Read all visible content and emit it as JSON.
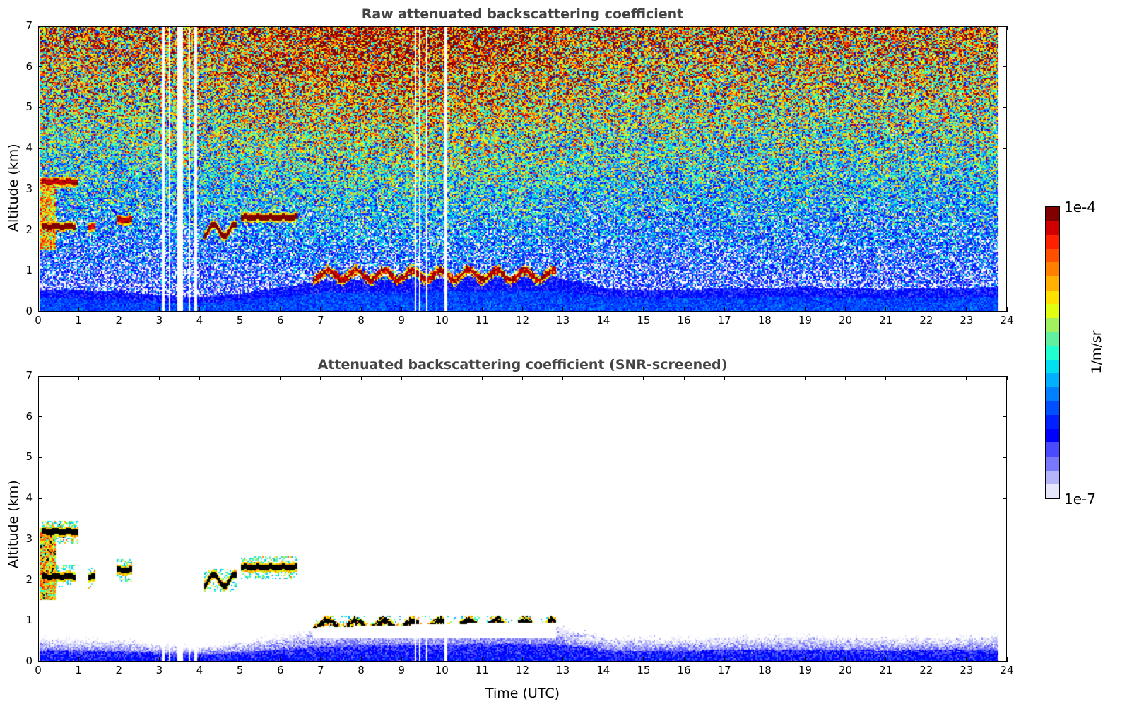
{
  "chart_data": [
    {
      "type": "heatmap",
      "title": "Raw attenuated backscattering coefficient",
      "xlabel": "",
      "ylabel": "Altitude (km)",
      "xlim": [
        0,
        24
      ],
      "ylim": [
        0,
        7
      ],
      "xticks": [
        "0",
        "1",
        "2",
        "3",
        "4",
        "5",
        "6",
        "7",
        "8",
        "9",
        "10",
        "11",
        "12",
        "13",
        "14",
        "15",
        "16",
        "17",
        "18",
        "19",
        "20",
        "21",
        "22",
        "23",
        "24"
      ],
      "yticks": [
        "0",
        "1",
        "2",
        "3",
        "4",
        "5",
        "6",
        "7"
      ],
      "screened": false
    },
    {
      "type": "heatmap",
      "title": "Attenuated backscattering coefficient (SNR-screened)",
      "xlabel": "Time (UTC)",
      "ylabel": "Altitude (km)",
      "xlim": [
        0,
        24
      ],
      "ylim": [
        0,
        7
      ],
      "xticks": [
        "0",
        "1",
        "2",
        "3",
        "4",
        "5",
        "6",
        "7",
        "8",
        "9",
        "10",
        "11",
        "12",
        "13",
        "14",
        "15",
        "16",
        "17",
        "18",
        "19",
        "20",
        "21",
        "22",
        "23",
        "24"
      ],
      "yticks": [
        "0",
        "1",
        "2",
        "3",
        "4",
        "5",
        "6",
        "7"
      ],
      "screened": true
    }
  ],
  "shared": {
    "data_end_time": 23.8,
    "data_gaps_hours": [
      [
        3.05,
        3.1
      ],
      [
        3.2,
        3.25
      ],
      [
        3.42,
        3.55
      ],
      [
        3.7,
        3.75
      ],
      [
        3.85,
        3.92
      ],
      [
        9.3,
        9.33
      ],
      [
        9.42,
        9.45
      ],
      [
        9.6,
        9.63
      ],
      [
        10.05,
        10.1
      ]
    ],
    "boundary_layer_top_km": [
      [
        0,
        0.55
      ],
      [
        2,
        0.5
      ],
      [
        3,
        0.4
      ],
      [
        4,
        0.35
      ],
      [
        5,
        0.45
      ],
      [
        6,
        0.6
      ],
      [
        7,
        0.75
      ],
      [
        9,
        0.8
      ],
      [
        11,
        0.85
      ],
      [
        12.8,
        0.85
      ],
      [
        13.5,
        0.7
      ],
      [
        14.2,
        0.55
      ],
      [
        16,
        0.55
      ],
      [
        19,
        0.6
      ],
      [
        21,
        0.55
      ],
      [
        23.8,
        0.6
      ]
    ],
    "cloud_layers": [
      {
        "t_start": 0.05,
        "t_end": 0.95,
        "alt_km": 3.2,
        "log10_value": -4.2
      },
      {
        "t_start": 0.05,
        "t_end": 0.9,
        "alt_km": 2.1,
        "log10_value": -4.1
      },
      {
        "t_start": 1.2,
        "t_end": 1.4,
        "alt_km": 2.08,
        "log10_value": -4.3
      },
      {
        "t_start": 1.9,
        "t_end": 2.3,
        "alt_km": 2.25,
        "log10_value": -4.2
      },
      {
        "t_start": 4.1,
        "t_end": 4.9,
        "alt_km": 2.0,
        "log10_value": -4.1
      },
      {
        "t_start": 5.0,
        "t_end": 6.4,
        "alt_km": 2.32,
        "log10_value": -4.05
      },
      {
        "t_start": 6.8,
        "t_end": 12.8,
        "alt_km": 0.85,
        "log10_value": -4.2
      }
    ],
    "cloud_column": {
      "t_start": 0.0,
      "t_end": 0.4,
      "alt_bottom_km": 1.5,
      "alt_top_km": 3.3
    }
  },
  "colorbar": {
    "label": "1/m/sr",
    "min_label": "1e-7",
    "max_label": "1e-4",
    "log10_range": [
      -7,
      -4
    ],
    "colors": [
      "#e6e6fa",
      "#b4b4fa",
      "#7878fa",
      "#4a4aff",
      "#0000ff",
      "#0020ff",
      "#0050ff",
      "#0080ff",
      "#00b0ff",
      "#00e0f0",
      "#20ffd0",
      "#60f0a0",
      "#a0f060",
      "#e0ff10",
      "#ffe000",
      "#ffb000",
      "#ff8000",
      "#ff5000",
      "#ff2000",
      "#d00000",
      "#800000"
    ]
  }
}
